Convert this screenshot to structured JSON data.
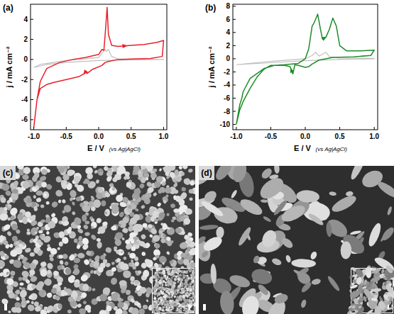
{
  "chart_data": [
    {
      "type": "line",
      "title": "(a)",
      "x_label": "E / V",
      "y_label": "j / mA cm⁻²",
      "annotations": [
        "(vs Ag|AgCl)"
      ],
      "xlim": [
        -1.05,
        1.05
      ],
      "xticks": [
        {
          "value": -1,
          "label": "-1.0"
        },
        {
          "value": -0.5,
          "label": "-0.5"
        },
        {
          "value": 0,
          "label": "0.0"
        },
        {
          "value": 0.5,
          "label": "0.5"
        },
        {
          "value": 1,
          "label": "1.0"
        }
      ],
      "ylim": [
        -7,
        5.5
      ],
      "yticks": [
        -6,
        -4,
        -2,
        0,
        2,
        4
      ],
      "series": [
        {
          "color": "#c0c0c0",
          "x": [
            -1.0,
            -0.9,
            -0.7,
            -0.5,
            -0.3,
            0.0,
            0.05,
            0.1,
            0.12,
            0.15,
            0.2,
            0.3,
            0.5,
            1.0,
            1.0,
            0.5,
            0.0,
            -0.5,
            -0.8,
            -1.0
          ],
          "values": [
            -0.8,
            -0.5,
            -0.3,
            -0.1,
            0.0,
            0.2,
            0.6,
            1.0,
            0.8,
            1.0,
            0.3,
            0.05,
            0.0,
            0.0,
            0.0,
            -0.05,
            -0.1,
            -0.3,
            -0.5,
            -0.8
          ]
        },
        {
          "color": "#e8202a",
          "x": [
            -1.0,
            -0.95,
            -0.9,
            -0.8,
            -0.6,
            -0.4,
            -0.2,
            0.0,
            0.05,
            0.08,
            0.1,
            0.13,
            0.15,
            0.2,
            0.3,
            0.5,
            0.7,
            0.9,
            1.0,
            0.98,
            0.8,
            0.5,
            0.3,
            0.15,
            0.1,
            0.05,
            -0.1,
            -0.18,
            -0.2,
            -0.22,
            -0.3,
            -0.5,
            -0.7,
            -0.8,
            -0.9,
            -0.95,
            -1.0
          ],
          "values": [
            -6.8,
            -4.0,
            -2.2,
            -0.9,
            -0.3,
            0.0,
            0.2,
            0.5,
            1.0,
            0.9,
            2.5,
            5.2,
            2.5,
            1.4,
            1.3,
            1.4,
            1.5,
            1.7,
            1.9,
            0.3,
            0.1,
            0.05,
            0.0,
            -0.2,
            -0.3,
            -0.6,
            -1.0,
            -1.4,
            -1.2,
            -1.4,
            -1.7,
            -2.0,
            -2.3,
            -2.5,
            -2.9,
            -4.0,
            -6.8
          ]
        }
      ]
    },
    {
      "type": "line",
      "title": "(b)",
      "x_label": "E / V",
      "y_label": "j / mA cm⁻²",
      "annotations": [
        "(vs Ag|AgCl)"
      ],
      "xlim": [
        -1.05,
        1.05
      ],
      "xticks": [
        {
          "value": -1,
          "label": "-1.0"
        },
        {
          "value": -0.5,
          "label": "-0.5"
        },
        {
          "value": 0,
          "label": "0.0"
        },
        {
          "value": 0.5,
          "label": "0.5"
        },
        {
          "value": 1,
          "label": "1.0"
        }
      ],
      "ylim": [
        -10.8,
        8.3
      ],
      "yticks": [
        -10,
        -8,
        -6,
        -4,
        -2,
        0,
        2,
        4,
        6,
        8
      ],
      "series": [
        {
          "color": "#c0c0c0",
          "x": [
            -1.0,
            -0.5,
            0.0,
            0.1,
            0.15,
            0.2,
            0.3,
            0.35,
            0.5,
            1.0,
            1.0,
            0.5,
            0.0,
            -0.5,
            -1.0
          ],
          "values": [
            -0.9,
            -0.4,
            0.0,
            0.5,
            1.0,
            0.4,
            1.0,
            0.3,
            0.1,
            0.05,
            0.0,
            -0.1,
            -0.3,
            -0.6,
            -0.9
          ]
        },
        {
          "color": "#1e8c2a",
          "x": [
            -1.0,
            -0.97,
            -0.95,
            -0.92,
            -0.9,
            -0.8,
            -0.6,
            -0.45,
            -0.3,
            -0.1,
            0.0,
            0.05,
            0.1,
            0.12,
            0.15,
            0.18,
            0.22,
            0.25,
            0.3,
            0.35,
            0.4,
            0.45,
            0.5,
            0.6,
            0.8,
            1.0,
            0.95,
            0.7,
            0.4,
            0.2,
            0.1,
            0.05,
            0.0,
            -0.1,
            -0.15,
            -0.18,
            -0.22,
            -0.3,
            -0.5,
            -0.6,
            -0.7,
            -0.8,
            -0.9,
            -0.95,
            -1.0
          ],
          "values": [
            -10.0,
            -8.2,
            -7.0,
            -6.0,
            -5.0,
            -3.0,
            -1.5,
            -1.0,
            -0.9,
            -0.7,
            0.0,
            1.5,
            5.0,
            5.3,
            6.0,
            6.8,
            4.5,
            3.0,
            3.3,
            4.5,
            6.2,
            5.0,
            2.0,
            1.2,
            1.2,
            1.3,
            0.5,
            0.3,
            0.2,
            -0.2,
            -0.8,
            -1.2,
            -1.3,
            -1.0,
            -0.9,
            -2.3,
            -1.2,
            -1.0,
            -1.0,
            -1.6,
            -2.8,
            -4.5,
            -6.5,
            -7.8,
            -10.0
          ]
        }
      ]
    }
  ],
  "images": [
    {
      "label": "(c)"
    },
    {
      "label": "(d)"
    }
  ]
}
